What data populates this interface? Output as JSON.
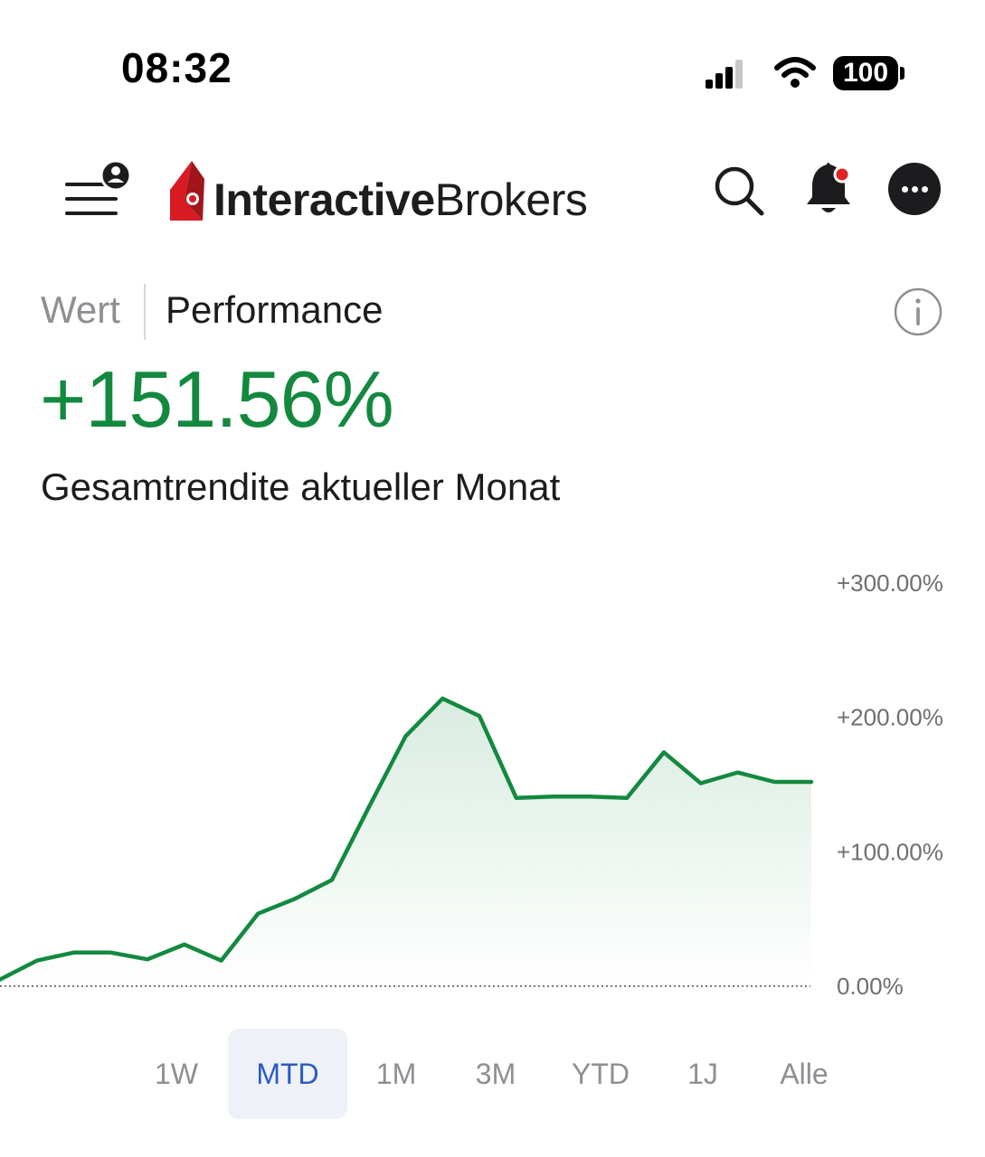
{
  "status_bar": {
    "time": "08:32",
    "battery": "100",
    "icons": [
      "signal-icon",
      "wifi-icon",
      "battery-icon"
    ]
  },
  "header": {
    "logo_bold": "Interactive",
    "logo_light": "Brokers",
    "icons": [
      "menu-user-icon",
      "search-icon",
      "bell-icon",
      "more-icon"
    ],
    "notification_dot_color": "#e02424"
  },
  "segment": {
    "wert": "Wert",
    "performance": "Performance"
  },
  "summary": {
    "value": "+151.56%",
    "label": "Gesamtrendite aktueller Monat",
    "value_color": "#13893f"
  },
  "chart_data": {
    "type": "area",
    "y_tick_labels": [
      "+300.00%",
      "+200.00%",
      "+100.00%",
      "0.00%"
    ],
    "ylim": [
      0,
      300
    ],
    "y_ticks": [
      300,
      200,
      100,
      0
    ],
    "baseline": 0,
    "series": [
      {
        "color": "#13893f",
        "values": [
          5,
          19,
          25,
          25,
          20,
          31,
          19,
          54,
          65,
          79,
          133,
          186,
          214,
          201,
          140,
          141,
          141,
          140,
          174,
          151,
          159,
          152,
          152
        ]
      }
    ],
    "grid": false
  },
  "range_tabs": {
    "selected": "MTD",
    "items": [
      "1W",
      "MTD",
      "1M",
      "3M",
      "YTD",
      "1J",
      "Alle"
    ]
  }
}
